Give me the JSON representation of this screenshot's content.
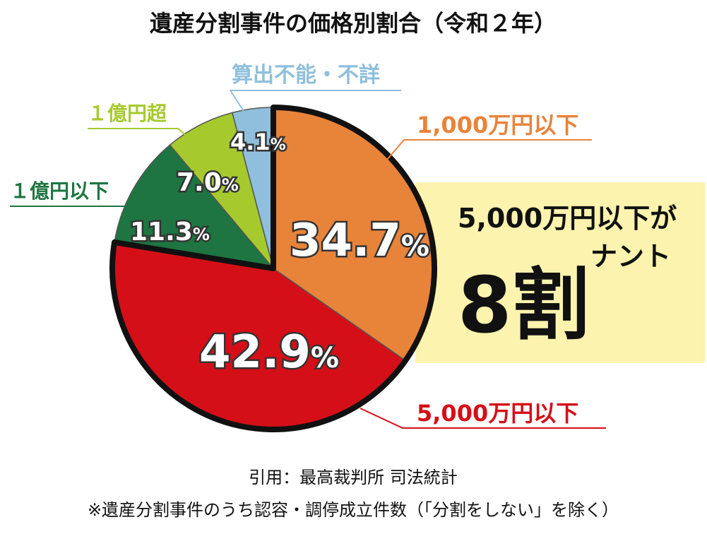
{
  "chart_data": {
    "type": "pie",
    "title": "遺産分割事件の価格別割合（令和２年）",
    "unit": "%",
    "slices": [
      {
        "label": "1,000万円以下",
        "value": 34.7,
        "value_label": "34.7",
        "color": "#E8833A"
      },
      {
        "label": "5,000万円以下",
        "value": 42.9,
        "value_label": "42.9",
        "color": "#D50F17"
      },
      {
        "label": "１億円以下",
        "value": 11.3,
        "value_label": "11.3",
        "color": "#1E7541"
      },
      {
        "label": "１億円超",
        "value": 7.0,
        "value_label": "7.0",
        "color": "#A6CA2E"
      },
      {
        "label": "算出不能・不詳",
        "value": 4.1,
        "value_label": "4.1",
        "color": "#8FBFDC"
      }
    ],
    "highlighted": [
      "1,000万円以下",
      "5,000万円以下"
    ],
    "callout": {
      "line1": "5,000万円以下が",
      "line2": "ナント",
      "big": "8割",
      "background": "#FBF3AE"
    }
  },
  "footer": {
    "source": "引用：最高裁判所 司法統計",
    "note": "※遺産分割事件のうち認容・調停成立件数（「分割をしない」を除く）"
  }
}
